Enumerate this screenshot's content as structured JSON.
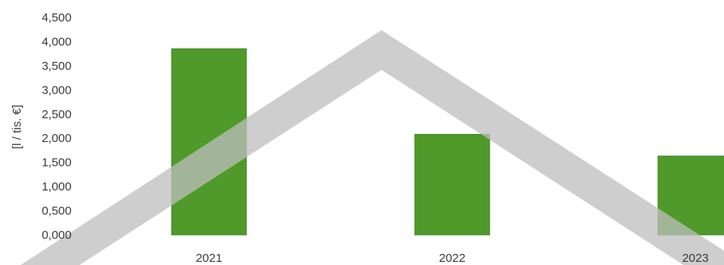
{
  "chart_data": {
    "type": "bar",
    "categories": [
      "2021",
      "2022",
      "2023"
    ],
    "values": [
      3.85,
      2.08,
      1.63
    ],
    "ylabel": "[l / tis. €]",
    "yticks": [
      "0,000",
      "0,500",
      "1,000",
      "1,500",
      "2,000",
      "2,500",
      "3,000",
      "3,500",
      "4,000",
      "4,500"
    ],
    "ylim": [
      0,
      4.5
    ],
    "grid": false,
    "legend": "none",
    "colors": {
      "bar_fill": "#4f9a2a",
      "bar_edge": "#3f8220",
      "watermark": "#bdbdbd"
    }
  }
}
